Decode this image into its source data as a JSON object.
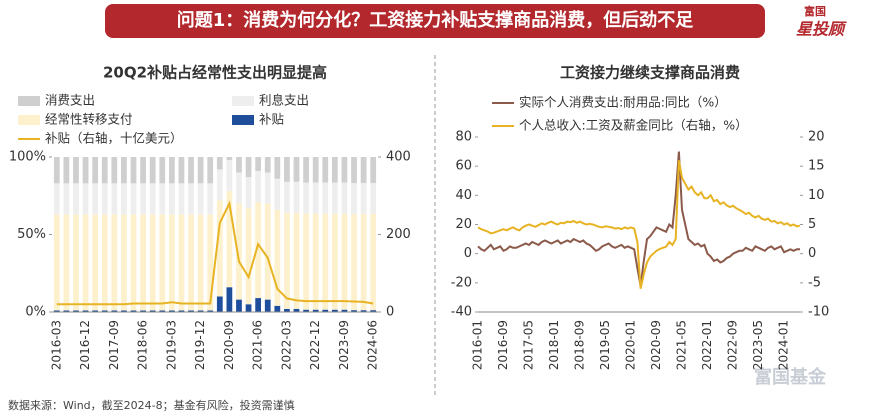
{
  "header": {
    "title": "问题1：消费为何分化？工资接力补贴支撑商品消费，但后劲不足",
    "logo_top": "富国",
    "logo_bottom": "星投顾"
  },
  "footer": "数据来源：Wind，截至2024-8；基金有风险，投资需谨慎",
  "watermark": "富国基金",
  "chart_data": [
    {
      "type": "bar",
      "title": "20Q2补贴占经常性支出明显提高",
      "stacked": true,
      "categories": [
        "2016-03",
        null,
        null,
        "2016-12",
        null,
        null,
        "2017-09",
        null,
        null,
        "2018-06",
        null,
        null,
        "2019-03",
        null,
        null,
        "2019-12",
        null,
        null,
        "2020-09",
        null,
        null,
        "2021-06",
        null,
        null,
        "2022-03",
        null,
        null,
        "2022-12",
        null,
        null,
        "2023-09",
        null,
        null,
        "2024-06"
      ],
      "series": [
        {
          "name": "消费支出",
          "color": "#cfcfcf",
          "values": [
            17,
            17,
            17,
            17,
            17,
            17,
            17,
            17,
            17,
            17,
            17,
            17,
            17,
            17,
            17,
            17,
            17,
            8,
            2,
            10,
            13,
            9,
            10,
            14,
            16,
            16,
            16.5,
            16.5,
            16.5,
            16.5,
            16.5,
            16.8,
            16.8,
            16.8
          ]
        },
        {
          "name": "利息支出",
          "color": "#eeeeee",
          "values": [
            20,
            20,
            20,
            20,
            20,
            20,
            20,
            20,
            20,
            20,
            20,
            20,
            20,
            20,
            20,
            20,
            20,
            20,
            20,
            20,
            20,
            20,
            20,
            20,
            20,
            20,
            20,
            20,
            20,
            20,
            20,
            20,
            20,
            20
          ]
        },
        {
          "name": "经常性转移支付",
          "color": "#fcf1cc",
          "values": [
            62,
            62,
            62,
            62,
            62,
            62,
            62,
            62,
            62,
            62,
            62,
            62,
            62,
            62,
            62,
            62,
            62,
            62,
            62,
            62,
            62,
            62,
            62,
            62,
            62,
            62,
            62,
            62,
            62,
            62,
            62,
            62,
            62,
            62
          ]
        },
        {
          "name": "补贴",
          "color": "#1f4e9c",
          "values": [
            1,
            1,
            1,
            1,
            1,
            1,
            1,
            1,
            1,
            1,
            1,
            1,
            1,
            1,
            1,
            1,
            1,
            10,
            16,
            8,
            5,
            9,
            8,
            4,
            2,
            2,
            1.5,
            1.5,
            1.5,
            1.5,
            1.5,
            1.2,
            1.2,
            1.2
          ]
        },
        {
          "name": "补贴（右轴，十亿美元）",
          "color": "#e8b323",
          "axis": "y2",
          "values": [
            20,
            20,
            20,
            20,
            20,
            20,
            20,
            20,
            22,
            22,
            22,
            22,
            25,
            22,
            22,
            22,
            22,
            230,
            280,
            130,
            90,
            175,
            140,
            60,
            35,
            30,
            28,
            28,
            28,
            28,
            28,
            27,
            26,
            22
          ]
        }
      ],
      "ylim": [
        0,
        100
      ],
      "yticks": [
        {
          "value": 0,
          "label": "0%"
        },
        {
          "value": 50,
          "label": "50%"
        },
        {
          "value": 100,
          "label": "100%"
        }
      ],
      "y2lim": [
        0,
        400
      ],
      "y2ticks": [
        0,
        200,
        400
      ]
    },
    {
      "type": "line",
      "title": "工资接力继续支撑商品消费",
      "categories": [
        "2016-01",
        null,
        null,
        null,
        null,
        null,
        null,
        null,
        "2016-09",
        null,
        null,
        null,
        null,
        null,
        null,
        null,
        "2017-05",
        null,
        null,
        null,
        null,
        null,
        null,
        null,
        "2018-01",
        null,
        null,
        null,
        null,
        null,
        null,
        null,
        "2018-09",
        null,
        null,
        null,
        null,
        null,
        null,
        null,
        "2019-05",
        null,
        null,
        null,
        null,
        null,
        null,
        null,
        "2020-01",
        null,
        null,
        null,
        null,
        null,
        null,
        null,
        "2020-09",
        null,
        null,
        null,
        null,
        null,
        null,
        null,
        "2021-05",
        null,
        null,
        null,
        null,
        null,
        null,
        null,
        "2022-01",
        null,
        null,
        null,
        null,
        null,
        null,
        null,
        "2022-09",
        null,
        null,
        null,
        null,
        null,
        null,
        null,
        "2023-05",
        null,
        null,
        null,
        null,
        null,
        null,
        null,
        "2024-01",
        null,
        null,
        null,
        null,
        null
      ],
      "series": [
        {
          "name": "实际个人消费支出:耐用品:同比（%）",
          "color": "#8b5a4a",
          "values": [
            5,
            3,
            2,
            4,
            6,
            3,
            4,
            5,
            2,
            3,
            5,
            4,
            4,
            5,
            6,
            7,
            6,
            8,
            7,
            6,
            8,
            9,
            8,
            7,
            8,
            9,
            7,
            8,
            9,
            8,
            10,
            9,
            8,
            9,
            7,
            6,
            4,
            2,
            3,
            5,
            6,
            7,
            5,
            4,
            5,
            6,
            4,
            5,
            4,
            3,
            -10,
            -22,
            -5,
            10,
            12,
            15,
            18,
            17,
            16,
            15,
            20,
            18,
            40,
            70,
            30,
            20,
            10,
            8,
            6,
            7,
            5,
            6,
            0,
            -2,
            -5,
            -4,
            -6,
            -5,
            -3,
            -2,
            0,
            1,
            2,
            2,
            4,
            3,
            2,
            5,
            4,
            3,
            2,
            4,
            5,
            3,
            4,
            5,
            1,
            2,
            3,
            2,
            3,
            3
          ]
        },
        {
          "name": "个人总收入:工资及薪金同比（右轴，%）",
          "color": "#e8b323",
          "axis": "y2",
          "values": [
            4.5,
            4.2,
            4.0,
            3.8,
            3.5,
            3.6,
            3.8,
            4.0,
            4.2,
            4.0,
            4.3,
            4.5,
            4.2,
            4.0,
            4.5,
            4.8,
            5.0,
            4.8,
            4.6,
            4.9,
            5.2,
            5.0,
            5.3,
            5.5,
            5.2,
            5.0,
            5.3,
            5.2,
            5.5,
            5.4,
            5.6,
            5.3,
            5.5,
            5.2,
            5.0,
            5.1,
            5.0,
            4.8,
            4.6,
            4.5,
            4.7,
            4.6,
            4.5,
            4.3,
            4.4,
            4.2,
            4.5,
            4.3,
            4.5,
            4.3,
            2.0,
            -6.0,
            -3.5,
            -1.5,
            -0.5,
            0.0,
            0.5,
            0.8,
            1.0,
            1.2,
            2.0,
            1.5,
            2.5,
            16.0,
            13.0,
            12.0,
            11.0,
            11.5,
            10.5,
            10.0,
            10.5,
            9.5,
            9.5,
            10.0,
            9.0,
            9.2,
            8.5,
            8.8,
            8.3,
            8.0,
            8.2,
            7.8,
            7.5,
            7.2,
            6.8,
            7.0,
            6.5,
            6.2,
            6.5,
            6.0,
            5.8,
            6.0,
            5.5,
            5.6,
            5.2,
            5.4,
            5.0,
            5.2,
            4.8,
            5.0,
            4.7,
            4.8
          ]
        }
      ],
      "ylim": [
        -40,
        80
      ],
      "yticks": [
        -40,
        -20,
        0,
        20,
        40,
        60,
        80
      ],
      "y2lim": [
        -10,
        20
      ],
      "y2ticks": [
        -10,
        -5,
        0,
        5,
        10,
        15,
        20
      ]
    }
  ]
}
